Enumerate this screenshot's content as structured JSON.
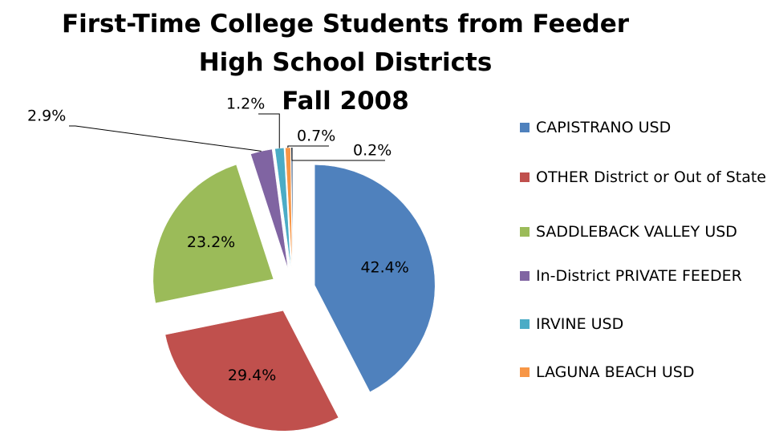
{
  "chart_data": {
    "type": "pie",
    "title": [
      "First-Time College Students from Feeder",
      "High School Districts",
      "Fall 2008"
    ],
    "categories": [
      "CAPISTRANO USD",
      "OTHER District or Out of State",
      "SADDLEBACK VALLEY USD",
      "In-District PRIVATE FEEDER",
      "IRVINE USD",
      "LAGUNA BEACH USD",
      null
    ],
    "values": [
      42.4,
      29.4,
      23.2,
      2.9,
      1.2,
      0.7,
      0.2
    ],
    "value_labels": [
      "42.4%",
      "29.4%",
      "23.2%",
      "2.9%",
      "1.2%",
      "0.7%",
      "0.2%"
    ],
    "colors": [
      "#4f81bd",
      "#c0504d",
      "#9bbb59",
      "#8064a2",
      "#4bacc6",
      "#f79646",
      "#2c4d75"
    ],
    "legend": "right"
  }
}
